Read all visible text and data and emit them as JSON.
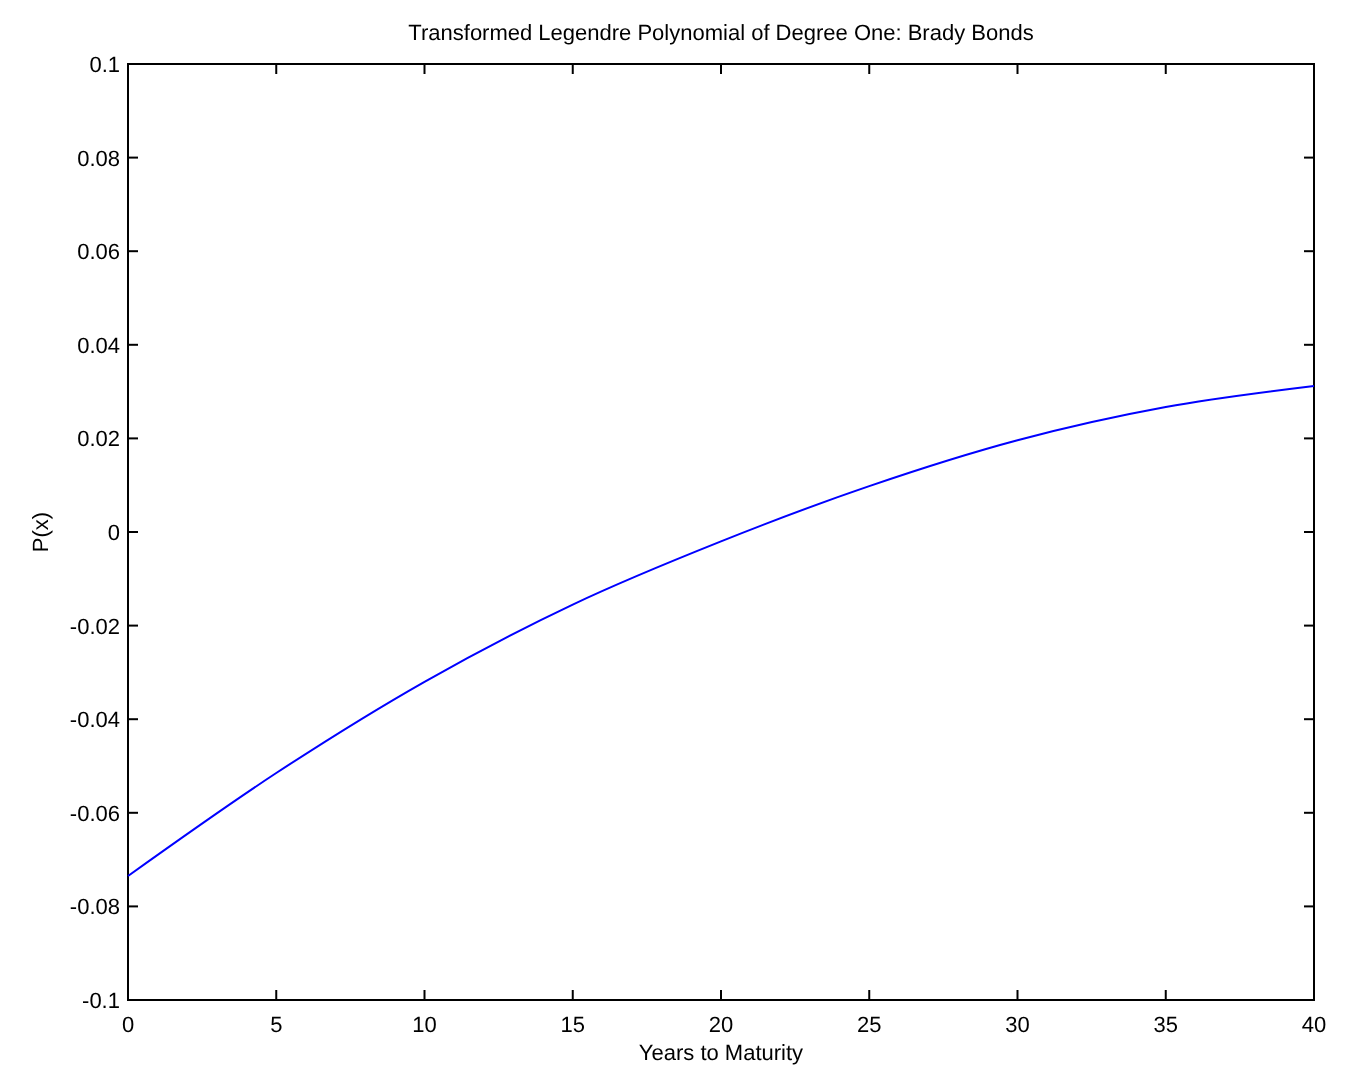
{
  "chart_data": {
    "type": "line",
    "title": "Transformed Legendre Polynomial of Degree One: Brady Bonds",
    "xlabel": "Years to Maturity",
    "ylabel": "P(x)",
    "x": [
      0,
      5,
      10,
      15,
      20,
      25,
      30,
      35,
      40
    ],
    "series": [
      {
        "color": "#0000ff",
        "values": [
          -0.0735,
          -0.0515,
          -0.032,
          -0.0155,
          -0.002,
          0.0098,
          0.0196,
          0.0267,
          0.0312
        ]
      }
    ],
    "xlim": [
      0,
      40
    ],
    "xticks": [
      0,
      5,
      10,
      15,
      20,
      25,
      30,
      35,
      40
    ],
    "ylim": [
      -0.1,
      0.1
    ],
    "yticks": [
      -0.1,
      -0.08,
      -0.06,
      -0.04,
      -0.02,
      0,
      0.02,
      0.04,
      0.06,
      0.08,
      0.1
    ],
    "grid": false,
    "marker": "none",
    "line_style": "solid"
  }
}
